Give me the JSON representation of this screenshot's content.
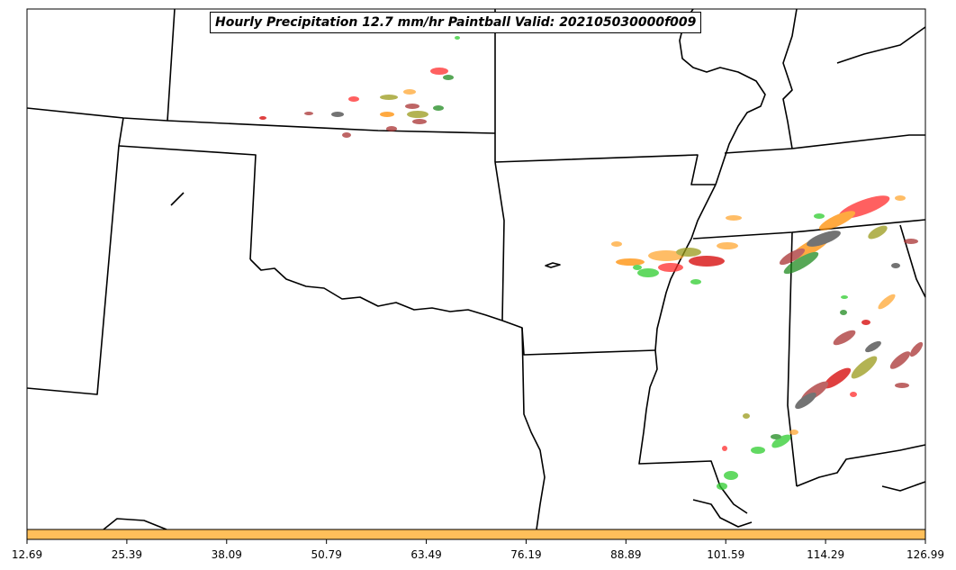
{
  "title": "Hourly Precipitation 12.7 mm/hr Paintball Valid: 202105030000f009",
  "colorbar": {
    "color": "#ffbf5a",
    "tick_labels": [
      "12.69",
      "25.39",
      "38.09",
      "50.79",
      "63.49",
      "76.19",
      "88.89",
      "101.59",
      "114.29",
      "126.99"
    ]
  },
  "colors": {
    "member_colors": [
      "#ff2b2b",
      "#d40000",
      "#ff8c00",
      "#ffa733",
      "#2ecc2e",
      "#1f8a1f",
      "#9a9a1a",
      "#a83232",
      "#444444"
    ],
    "state_lines": "#000000"
  }
}
